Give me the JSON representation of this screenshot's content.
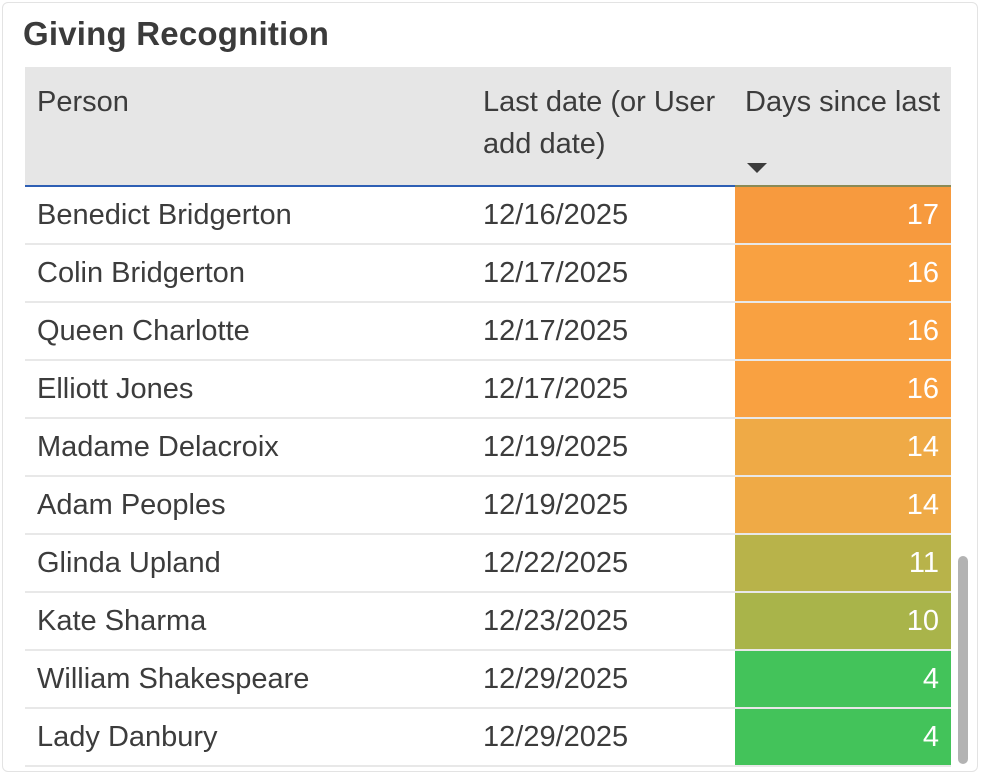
{
  "title": "Giving Recognition",
  "columns": {
    "person": "Person",
    "date": "Last date (or User add date)",
    "days": "Days since last"
  },
  "rows": [
    {
      "person": "Benedict Bridgerton",
      "date": "12/16/2025",
      "days": "17",
      "color": "#f79a3e"
    },
    {
      "person": "Colin Bridgerton",
      "date": "12/17/2025",
      "days": "16",
      "color": "#f9a141"
    },
    {
      "person": "Queen Charlotte",
      "date": "12/17/2025",
      "days": "16",
      "color": "#f9a141"
    },
    {
      "person": "Elliott Jones",
      "date": "12/17/2025",
      "days": "16",
      "color": "#f9a141"
    },
    {
      "person": "Madame Delacroix",
      "date": "12/19/2025",
      "days": "14",
      "color": "#efaa46"
    },
    {
      "person": "Adam Peoples",
      "date": "12/19/2025",
      "days": "14",
      "color": "#efaa46"
    },
    {
      "person": "Glinda Upland",
      "date": "12/22/2025",
      "days": "11",
      "color": "#b8b34a"
    },
    {
      "person": "Kate Sharma",
      "date": "12/23/2025",
      "days": "10",
      "color": "#a9b44a"
    },
    {
      "person": "William Shakespeare",
      "date": "12/29/2025",
      "days": "4",
      "color": "#43c35a"
    },
    {
      "person": "Lady Danbury",
      "date": "12/29/2025",
      "days": "4",
      "color": "#43c35a"
    }
  ],
  "sort": {
    "column": "days",
    "direction": "descending",
    "icon": "sort-descending-icon"
  },
  "colors": {
    "header_bg": "#e6e6e6",
    "header_border": "#2e5fb4",
    "scrollbar": "#b3b3b3"
  }
}
